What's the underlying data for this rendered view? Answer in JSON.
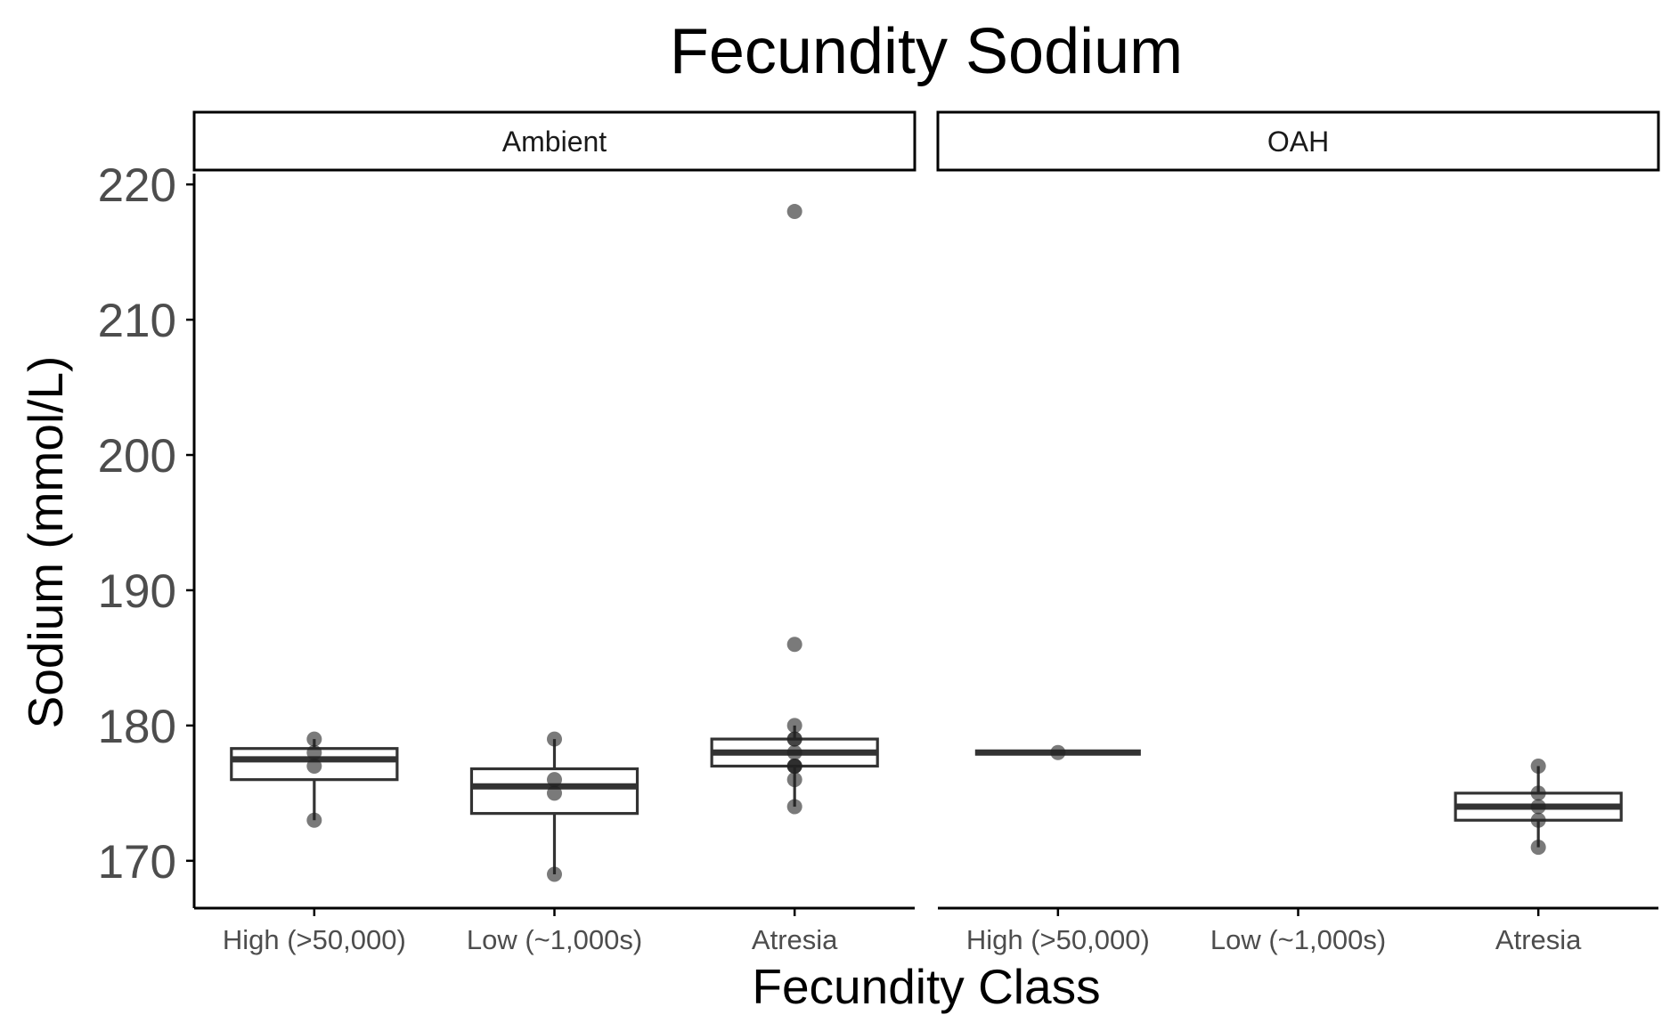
{
  "chart_data": {
    "type": "box",
    "title": "Fecundity Sodium",
    "xlabel": "Fecundity Class",
    "ylabel": "Sodium (mmol/L)",
    "ylim": [
      166.5,
      220.8
    ],
    "yticks": [
      170,
      180,
      190,
      200,
      210,
      220
    ],
    "categories": [
      "High (>50,000)",
      "Low (~1,000s)",
      "Atresia"
    ],
    "grid": false,
    "legend": "none",
    "colors": {
      "box_stroke": "#333333",
      "point": "#222222",
      "axis": "#000000",
      "tick_label": "#4d4d4d"
    },
    "facets": [
      {
        "label": "Ambient",
        "boxes": [
          {
            "category": "High (>50,000)",
            "q1": 176,
            "median": 177.5,
            "q3": 178.3,
            "whisker_low": 173,
            "whisker_high": 179
          },
          {
            "category": "Low (~1,000s)",
            "q1": 173.5,
            "median": 175.5,
            "q3": 176.8,
            "whisker_low": 169,
            "whisker_high": 179
          },
          {
            "category": "Atresia",
            "q1": 177,
            "median": 178,
            "q3": 179,
            "whisker_low": 174,
            "whisker_high": 180
          }
        ],
        "points": [
          {
            "category": "High (>50,000)",
            "y": 179
          },
          {
            "category": "High (>50,000)",
            "y": 178
          },
          {
            "category": "High (>50,000)",
            "y": 177
          },
          {
            "category": "High (>50,000)",
            "y": 173
          },
          {
            "category": "Low (~1,000s)",
            "y": 179
          },
          {
            "category": "Low (~1,000s)",
            "y": 176
          },
          {
            "category": "Low (~1,000s)",
            "y": 175
          },
          {
            "category": "Low (~1,000s)",
            "y": 169
          },
          {
            "category": "Atresia",
            "y": 218
          },
          {
            "category": "Atresia",
            "y": 186
          },
          {
            "category": "Atresia",
            "y": 180
          },
          {
            "category": "Atresia",
            "y": 179
          },
          {
            "category": "Atresia",
            "y": 179
          },
          {
            "category": "Atresia",
            "y": 178
          },
          {
            "category": "Atresia",
            "y": 177
          },
          {
            "category": "Atresia",
            "y": 177
          },
          {
            "category": "Atresia",
            "y": 177
          },
          {
            "category": "Atresia",
            "y": 176
          },
          {
            "category": "Atresia",
            "y": 174
          }
        ]
      },
      {
        "label": "OAH",
        "boxes": [
          {
            "category": "High (>50,000)",
            "q1": 178,
            "median": 178,
            "q3": 178,
            "whisker_low": 178,
            "whisker_high": 178
          },
          {
            "category": "Atresia",
            "q1": 173,
            "median": 174,
            "q3": 175,
            "whisker_low": 171,
            "whisker_high": 177
          }
        ],
        "points": [
          {
            "category": "High (>50,000)",
            "y": 178
          },
          {
            "category": "Atresia",
            "y": 177
          },
          {
            "category": "Atresia",
            "y": 175
          },
          {
            "category": "Atresia",
            "y": 174
          },
          {
            "category": "Atresia",
            "y": 173
          },
          {
            "category": "Atresia",
            "y": 171
          }
        ]
      }
    ]
  }
}
